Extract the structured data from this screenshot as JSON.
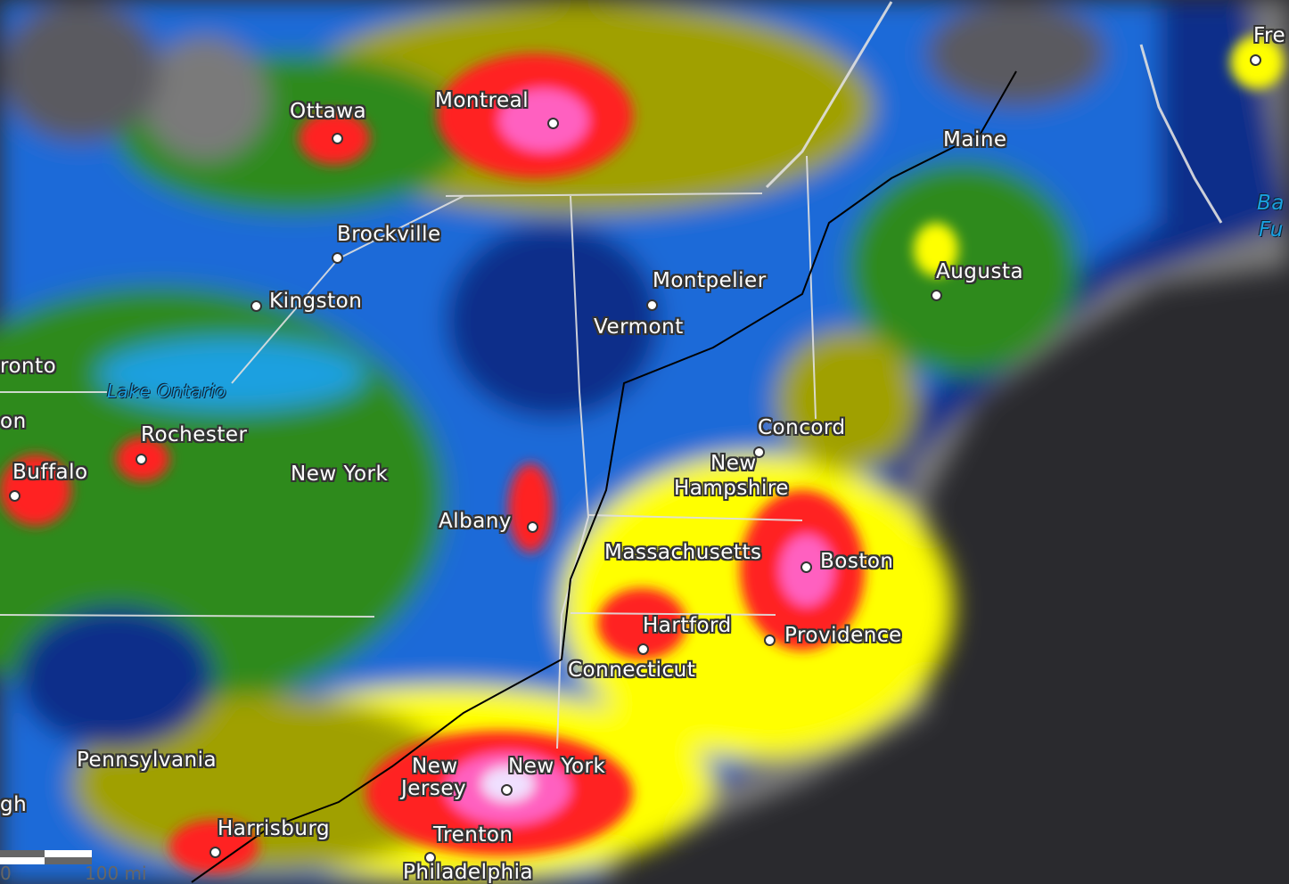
{
  "map": {
    "type": "light-pollution",
    "colors": {
      "ocean": "#2a2a2e",
      "dark": "#7a7a7a",
      "blue_dark": "#0a2f8a",
      "blue": "#1a6ad8",
      "cyan": "#1aa0e0",
      "green": "#2e8a1a",
      "olive": "#a0a000",
      "yellow": "#ffff00",
      "orange": "#ff8000",
      "red": "#ff2020",
      "pink": "#ff60c0",
      "white": "#f0e0ff"
    },
    "labels": [
      {
        "text": "Ottawa",
        "kind": "city"
      },
      {
        "text": "Montreal",
        "kind": "city"
      },
      {
        "text": "Brockville",
        "kind": "city"
      },
      {
        "text": "Kingston",
        "kind": "city"
      },
      {
        "text": "ronto",
        "kind": "city"
      },
      {
        "text": "on",
        "kind": "city"
      },
      {
        "text": "Rochester",
        "kind": "city"
      },
      {
        "text": "Buffalo",
        "kind": "city"
      },
      {
        "text": "New York",
        "kind": "region"
      },
      {
        "text": "Albany",
        "kind": "city"
      },
      {
        "text": "Montpelier",
        "kind": "city"
      },
      {
        "text": "Vermont",
        "kind": "region"
      },
      {
        "text": "Maine",
        "kind": "region"
      },
      {
        "text": "Augusta",
        "kind": "city"
      },
      {
        "text": "Fre",
        "kind": "city"
      },
      {
        "text": "Concord",
        "kind": "city"
      },
      {
        "text": "New",
        "kind": "region"
      },
      {
        "text": "Hampshire",
        "kind": "region"
      },
      {
        "text": "Massachusetts",
        "kind": "region"
      },
      {
        "text": "Boston",
        "kind": "city"
      },
      {
        "text": "Hartford",
        "kind": "city"
      },
      {
        "text": "Providence",
        "kind": "city"
      },
      {
        "text": "Connecticut",
        "kind": "region"
      },
      {
        "text": "Pennsylvania",
        "kind": "region"
      },
      {
        "text": "New",
        "kind": "region"
      },
      {
        "text": "Jersey",
        "kind": "region"
      },
      {
        "text": "New York",
        "kind": "city"
      },
      {
        "text": "gh",
        "kind": "city"
      },
      {
        "text": "Harrisburg",
        "kind": "city"
      },
      {
        "text": "Trenton",
        "kind": "city"
      },
      {
        "text": "Philadelphia",
        "kind": "city"
      },
      {
        "text": "Lake Ontario",
        "kind": "water"
      },
      {
        "text": "Ba",
        "kind": "water"
      },
      {
        "text": "Fu",
        "kind": "water"
      }
    ],
    "scale": {
      "zero": "0",
      "distance": "100 mi"
    }
  }
}
